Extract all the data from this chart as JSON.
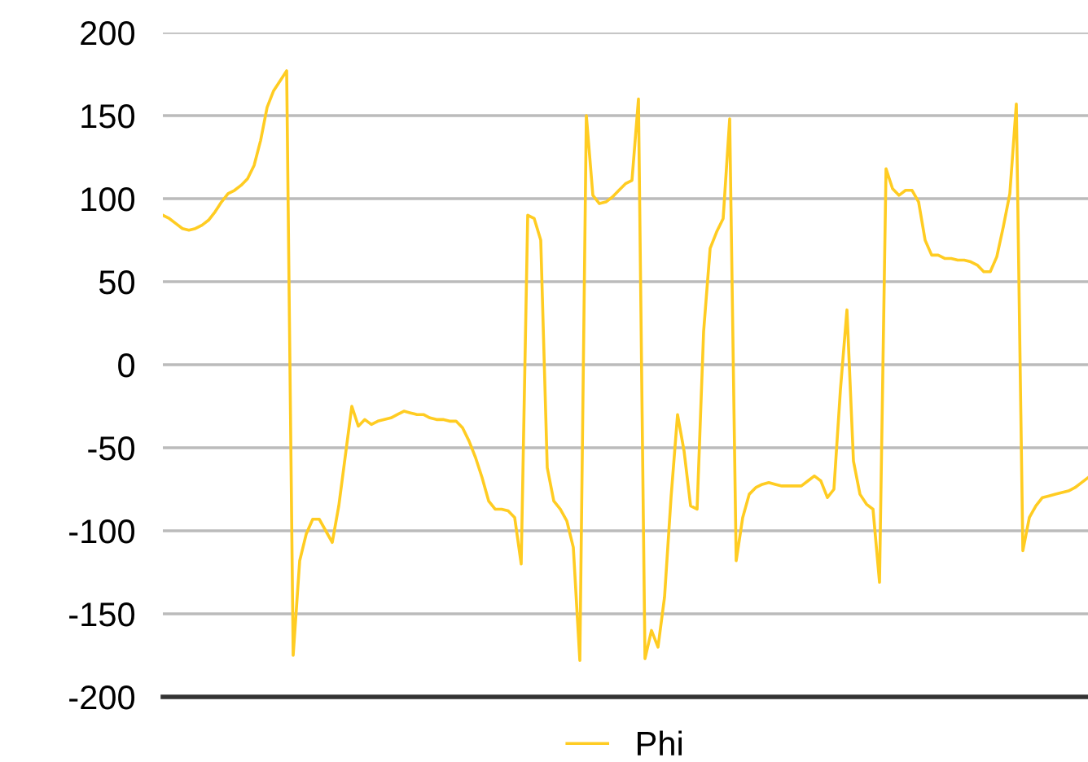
{
  "chart_data": {
    "type": "line",
    "categories": [
      null,
      null,
      null,
      null,
      null,
      null,
      null,
      null,
      null,
      null,
      null,
      null,
      null,
      null,
      null,
      null,
      null,
      null,
      null,
      null,
      null,
      null,
      null,
      null,
      null,
      null,
      null,
      null,
      null,
      null,
      null,
      null,
      null,
      null,
      null,
      null,
      null,
      null,
      null,
      null,
      null,
      null,
      null,
      null,
      null,
      null,
      null,
      null,
      null,
      null,
      null,
      null,
      null,
      null,
      null,
      null,
      null,
      null,
      null,
      null,
      null,
      null,
      null,
      null,
      null,
      null,
      null,
      null,
      null,
      null,
      null,
      null,
      null,
      null,
      null,
      null,
      null,
      null,
      null,
      null,
      null,
      null,
      null,
      null,
      null,
      null,
      null,
      null,
      null,
      null,
      null,
      null,
      null,
      null,
      null,
      null,
      null,
      null,
      null,
      null,
      null,
      null,
      null,
      null,
      null,
      null,
      null,
      null,
      null,
      null,
      null,
      null,
      null,
      null,
      null,
      null,
      null,
      null,
      null,
      null,
      null,
      null,
      null,
      null,
      null,
      null,
      null,
      null,
      null,
      null,
      null,
      null,
      null,
      null,
      null,
      null,
      null,
      null,
      null,
      null,
      null,
      null,
      null
    ],
    "series": [
      {
        "name": "Phi",
        "color": "#ffcc22",
        "values": [
          90,
          88,
          85,
          82,
          81,
          82,
          84,
          87,
          92,
          98,
          103,
          105,
          108,
          112,
          120,
          135,
          155,
          165,
          171,
          177,
          -175,
          -118,
          -102,
          -93,
          -93,
          -100,
          -107,
          -85,
          -55,
          -25,
          -37,
          -33,
          -36,
          -34,
          -33,
          -32,
          -30,
          -28,
          -29,
          -30,
          -30,
          -32,
          -33,
          -33,
          -34,
          -34,
          -38,
          -46,
          -56,
          -68,
          -82,
          -87,
          -87,
          -88,
          -92,
          -120,
          90,
          88,
          75,
          -62,
          -82,
          -87,
          -94,
          -110,
          -178,
          150,
          102,
          97,
          98,
          101,
          105,
          109,
          111,
          160,
          -177,
          -160,
          -170,
          -140,
          -80,
          -30,
          -52,
          -85,
          -87,
          20,
          70,
          80,
          88,
          148,
          -118,
          -92,
          -78,
          -74,
          -72,
          -71,
          -72,
          -73,
          -73,
          -73,
          -73,
          -70,
          -67,
          -70,
          -80,
          -75,
          -15,
          33,
          -58,
          -78,
          -84,
          -87,
          -131,
          118,
          106,
          102,
          105,
          105,
          98,
          75,
          66,
          66,
          64,
          64,
          63,
          63,
          62,
          60,
          56,
          56,
          65,
          83,
          103,
          157,
          -112,
          -92,
          -85,
          -80,
          -79,
          -78,
          -77,
          -76,
          -74,
          -71,
          -68
        ]
      }
    ],
    "ylim": [
      -200,
      200
    ],
    "yticks": [
      -200,
      -150,
      -100,
      -50,
      0,
      50,
      100,
      150,
      200
    ],
    "grid": "y",
    "legend": "bottom",
    "marker": "none",
    "line_style": "solid"
  }
}
